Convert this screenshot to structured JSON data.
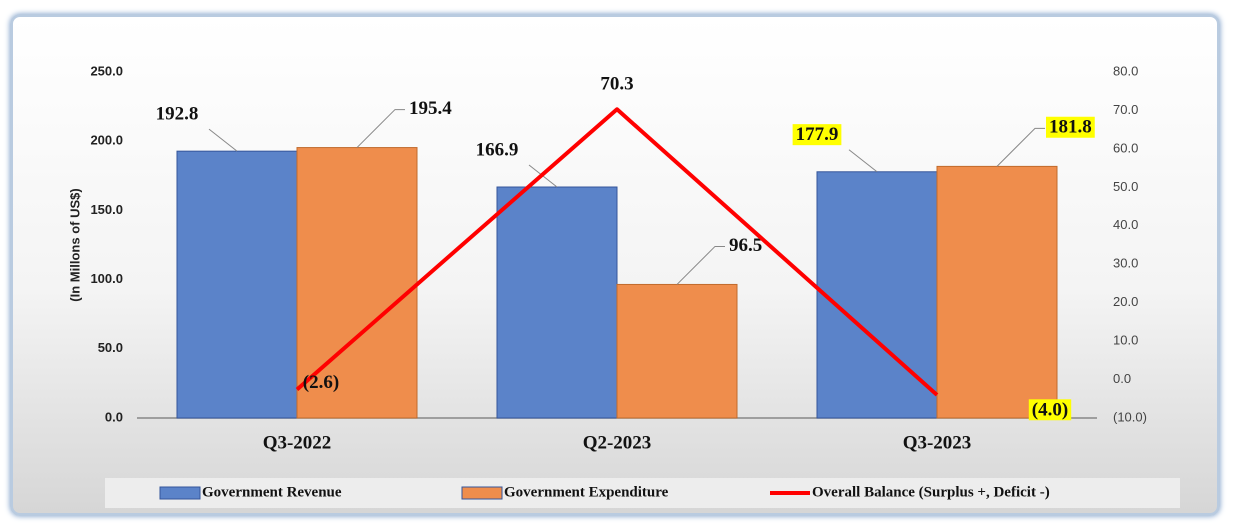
{
  "chart_data": {
    "type": "bar_line",
    "y_axis_label": "(In Millons of US$)",
    "categories": [
      "Q3-2022",
      "Q2-2023",
      "Q3-2023"
    ],
    "series": [
      {
        "name": "Government Revenue",
        "color": "#5b83c9",
        "values": [
          192.8,
          166.9,
          177.9
        ]
      },
      {
        "name": "Government Expenditure",
        "color": "#ef8d4c",
        "values": [
          195.4,
          96.5,
          181.8
        ]
      },
      {
        "name": "Overall Balance (Surplus +, Deficit -)",
        "color": "#ff0000",
        "axis": "y2",
        "type": "line",
        "values": [
          -2.6,
          70.3,
          -4.0
        ],
        "value_labels": [
          "(2.6)",
          "70.3",
          "(4.0)"
        ]
      }
    ],
    "ylim": [
      0,
      250
    ],
    "yticks": [
      {
        "value": 0,
        "label": "0.0"
      },
      {
        "value": 50,
        "label": "50.0"
      },
      {
        "value": 100,
        "label": "100.0"
      },
      {
        "value": 150,
        "label": "150.0"
      },
      {
        "value": 200,
        "label": "200.0"
      },
      {
        "value": 250,
        "label": "250.0"
      }
    ],
    "y2lim": [
      -10,
      80
    ],
    "y2ticks": [
      {
        "value": -10,
        "label": "(10.0)"
      },
      {
        "value": 0,
        "label": "0.0"
      },
      {
        "value": 10,
        "label": "10.0"
      },
      {
        "value": 20,
        "label": "20.0"
      },
      {
        "value": 30,
        "label": "30.0"
      },
      {
        "value": 40,
        "label": "40.0"
      },
      {
        "value": 50,
        "label": "50.0"
      },
      {
        "value": 60,
        "label": "60.0"
      },
      {
        "value": 70,
        "label": "70.0"
      },
      {
        "value": 80,
        "label": "80.0"
      }
    ],
    "grid": false,
    "legend": "bottom",
    "highlight_color": "#ffff00"
  }
}
